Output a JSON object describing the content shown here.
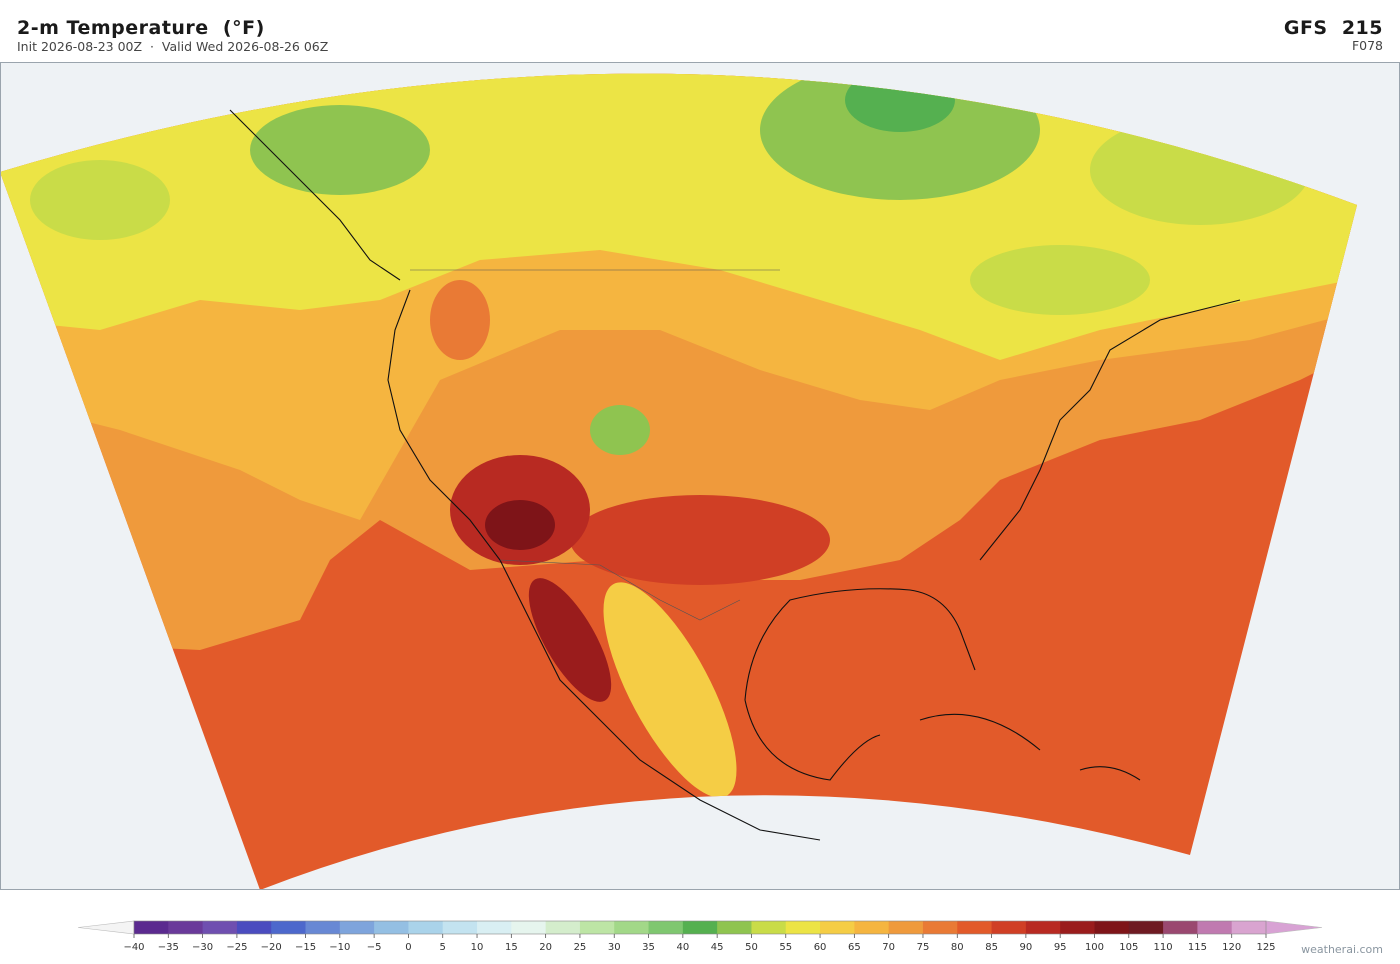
{
  "header": {
    "title": "2-m Temperature  (°F)",
    "subtitle": "Init 2026-08-23 00Z  ·  Valid Wed 2026-08-26 06Z",
    "model": "GFS  215",
    "forecast_hour": "F078"
  },
  "colorbar": {
    "ticks": [
      {
        "value": -40,
        "label": "−40"
      },
      {
        "value": -35,
        "label": "−35"
      },
      {
        "value": -30,
        "label": "−30"
      },
      {
        "value": -25,
        "label": "−25"
      },
      {
        "value": -20,
        "label": "−20"
      },
      {
        "value": -15,
        "label": "−15"
      },
      {
        "value": -10,
        "label": "−10"
      },
      {
        "value": -5,
        "label": "−5"
      },
      0,
      5,
      10,
      15,
      20,
      25,
      30,
      35,
      40,
      45,
      50,
      55,
      60,
      65,
      70,
      75,
      80,
      85,
      90,
      95,
      100,
      105,
      110,
      115,
      120,
      125
    ],
    "colors": [
      "#5b2a8f",
      "#6a3a9a",
      "#6f4fb0",
      "#4b4cbf",
      "#4d68cc",
      "#6888d4",
      "#7ea4dc",
      "#94bfe3",
      "#aad3ea",
      "#c3e3f0",
      "#d9eff3",
      "#e6f5ee",
      "#d4edcc",
      "#bde5a5",
      "#a2d888",
      "#7fc770",
      "#55b050",
      "#8fc450",
      "#c9dc48",
      "#ece445",
      "#f5cd45",
      "#f5b540",
      "#ef9a3c",
      "#e97a35",
      "#e25a2a",
      "#d03f25",
      "#b82a22",
      "#9a1c1c",
      "#7e1418",
      "#6e1a22",
      "#9a4870",
      "#c07ab0",
      "#d9a4d0"
    ],
    "under_color": "#f4f4f4",
    "over_color": "#d8a2d4"
  },
  "footer": {
    "credit": "weatherai.com"
  }
}
